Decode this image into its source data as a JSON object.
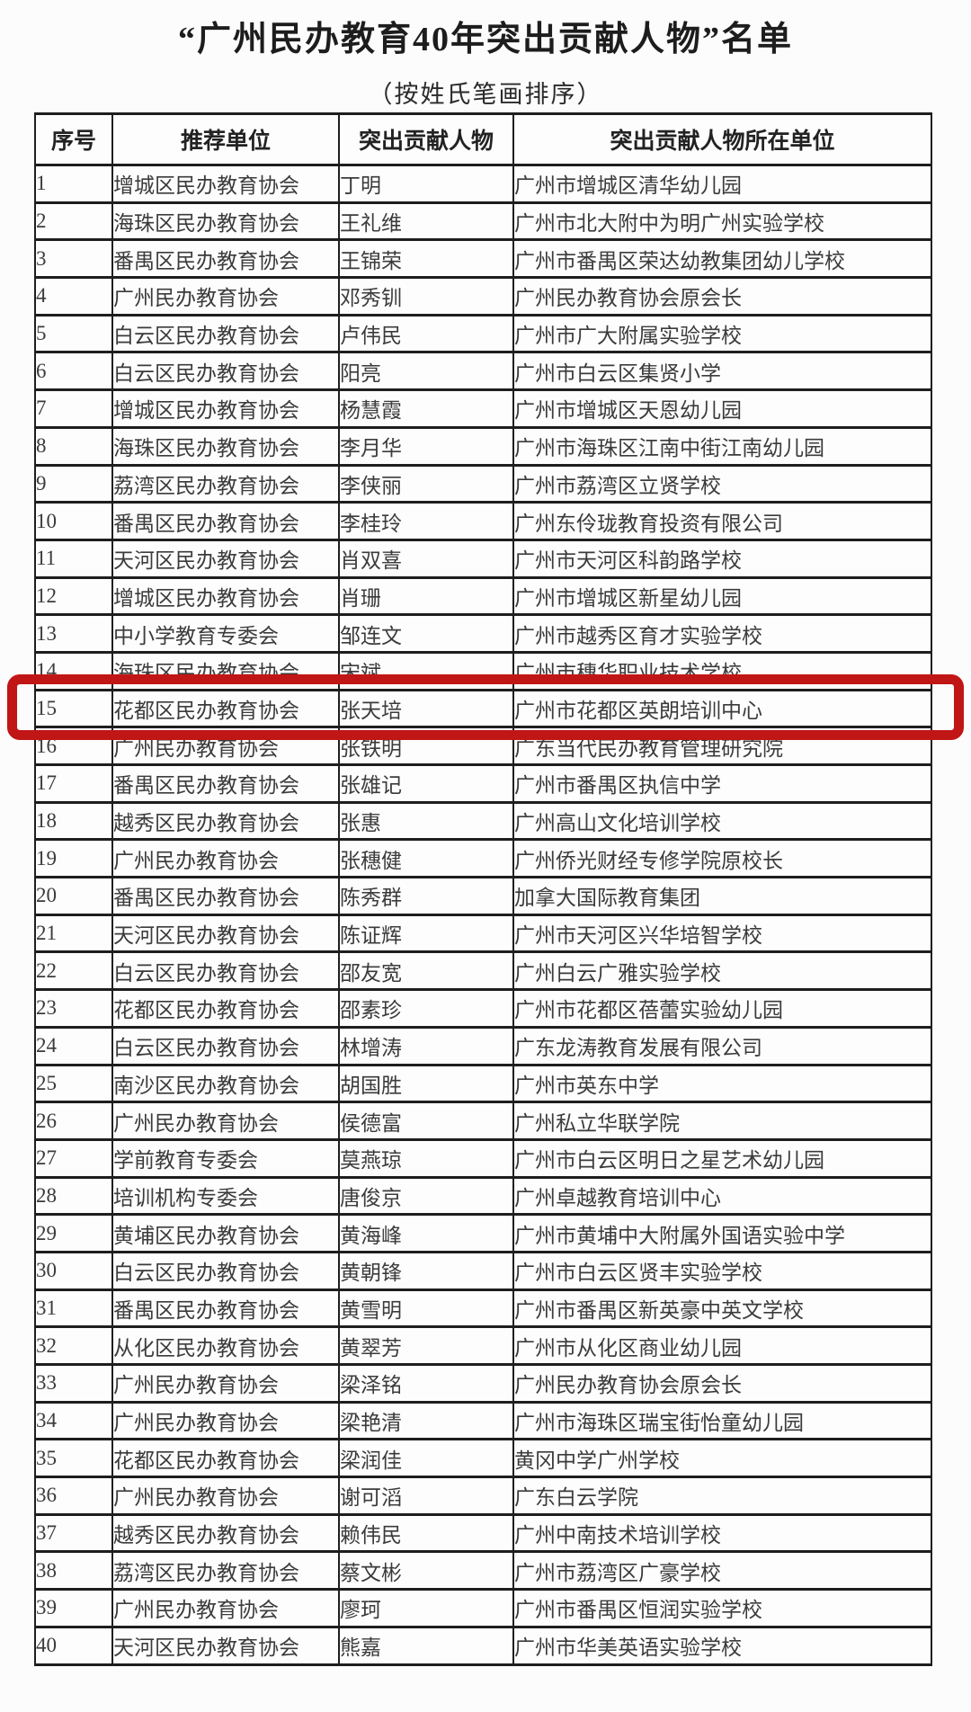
{
  "page": {
    "title": "“广州民办教育40年突出贡献人物”名单",
    "subtitle": "（按姓氏笔画排序）"
  },
  "table": {
    "headers": [
      "序号",
      "推荐单位",
      "突出贡献人物",
      "突出贡献人物所在单位"
    ],
    "rows": [
      [
        "1",
        "增城区民办教育协会",
        "丁明",
        "广州市增城区清华幼儿园"
      ],
      [
        "2",
        "海珠区民办教育协会",
        "王礼维",
        "广州市北大附中为明广州实验学校"
      ],
      [
        "3",
        "番禺区民办教育协会",
        "王锦荣",
        "广州市番禺区荣达幼教集团幼儿学校"
      ],
      [
        "4",
        "广州民办教育协会",
        "邓秀钏",
        "广州民办教育协会原会长"
      ],
      [
        "5",
        "白云区民办教育协会",
        "卢伟民",
        "广州市广大附属实验学校"
      ],
      [
        "6",
        "白云区民办教育协会",
        "阳亮",
        "广州市白云区集贤小学"
      ],
      [
        "7",
        "增城区民办教育协会",
        "杨慧霞",
        "广州市增城区天恩幼儿园"
      ],
      [
        "8",
        "海珠区民办教育协会",
        "李月华",
        "广州市海珠区江南中街江南幼儿园"
      ],
      [
        "9",
        "荔湾区民办教育协会",
        "李侠丽",
        "广州市荔湾区立贤学校"
      ],
      [
        "10",
        "番禺区民办教育协会",
        "李桂玲",
        "广州东伶珑教育投资有限公司"
      ],
      [
        "11",
        "天河区民办教育协会",
        "肖双喜",
        "广州市天河区科韵路学校"
      ],
      [
        "12",
        "增城区民办教育协会",
        "肖珊",
        "广州市增城区新星幼儿园"
      ],
      [
        "13",
        "中小学教育专委会",
        "邹连文",
        "广州市越秀区育才实验学校"
      ],
      [
        "14",
        "海珠区民办教育协会",
        "宋斌",
        "广州市穗华职业技术学校"
      ],
      [
        "15",
        "花都区民办教育协会",
        "张天培",
        "广州市花都区英朗培训中心"
      ],
      [
        "16",
        "广州民办教育协会",
        "张铁明",
        "广东当代民办教育管理研究院"
      ],
      [
        "17",
        "番禺区民办教育协会",
        "张雄记",
        "广州市番禺区执信中学"
      ],
      [
        "18",
        "越秀区民办教育协会",
        "张惠",
        "广州高山文化培训学校"
      ],
      [
        "19",
        "广州民办教育协会",
        "张穗健",
        "广州侨光财经专修学院原校长"
      ],
      [
        "20",
        "番禺区民办教育协会",
        "陈秀群",
        "加拿大国际教育集团"
      ],
      [
        "21",
        "天河区民办教育协会",
        "陈证辉",
        "广州市天河区兴华培智学校"
      ],
      [
        "22",
        "白云区民办教育协会",
        "邵友宽",
        "广州白云广雅实验学校"
      ],
      [
        "23",
        "花都区民办教育协会",
        "邵素珍",
        "广州市花都区蓓蕾实验幼儿园"
      ],
      [
        "24",
        "白云区民办教育协会",
        "林增涛",
        "广东龙涛教育发展有限公司"
      ],
      [
        "25",
        "南沙区民办教育协会",
        "胡国胜",
        "广州市英东中学"
      ],
      [
        "26",
        "广州民办教育协会",
        "侯德富",
        "广州私立华联学院"
      ],
      [
        "27",
        "学前教育专委会",
        "莫燕琼",
        "广州市白云区明日之星艺术幼儿园"
      ],
      [
        "28",
        "培训机构专委会",
        "唐俊京",
        "广州卓越教育培训中心"
      ],
      [
        "29",
        "黄埔区民办教育协会",
        "黄海峰",
        "广州市黄埔中大附属外国语实验中学"
      ],
      [
        "30",
        "白云区民办教育协会",
        "黄朝锋",
        "广州市白云区贤丰实验学校"
      ],
      [
        "31",
        "番禺区民办教育协会",
        "黄雪明",
        "广州市番禺区新英豪中英文学校"
      ],
      [
        "32",
        "从化区民办教育协会",
        "黄翠芳",
        "广州市从化区商业幼儿园"
      ],
      [
        "33",
        "广州民办教育协会",
        "梁泽铭",
        "广州民办教育协会原会长"
      ],
      [
        "34",
        "广州民办教育协会",
        "梁艳清",
        "广州市海珠区瑞宝街怡童幼儿园"
      ],
      [
        "35",
        "花都区民办教育协会",
        "梁润佳",
        "黄冈中学广州学校"
      ],
      [
        "36",
        "广州民办教育协会",
        "谢可滔",
        "广东白云学院"
      ],
      [
        "37",
        "越秀区民办教育协会",
        "赖伟民",
        "广州中南技术培训学校"
      ],
      [
        "38",
        "荔湾区民办教育协会",
        "蔡文彬",
        "广州市荔湾区广豪学校"
      ],
      [
        "39",
        "广州民办教育协会",
        "廖珂",
        "广州市番禺区恒润实验学校"
      ],
      [
        "40",
        "天河区民办教育协会",
        "熊嘉",
        "广州市华美英语实验学校"
      ]
    ],
    "highlight": {
      "row_number": "15",
      "color": "#c11616"
    }
  }
}
